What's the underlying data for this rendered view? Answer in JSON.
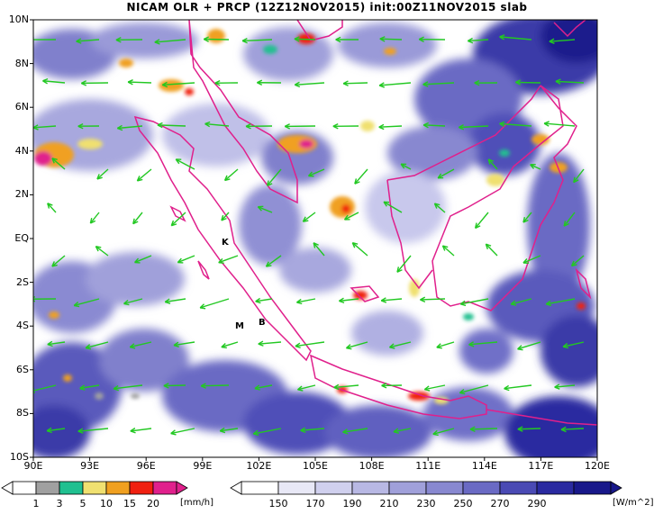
{
  "title": "NICAM OLR + PRCP (12Z12NOV2015) init:00Z11NOV2015 slab",
  "map": {
    "lat_labels": [
      "10N",
      "8N",
      "6N",
      "4N",
      "2N",
      "EQ",
      "2S",
      "4S",
      "6S",
      "8S",
      "10S"
    ],
    "lon_labels": [
      "90E",
      "93E",
      "96E",
      "99E",
      "102E",
      "105E",
      "108E",
      "111E",
      "114E",
      "117E",
      "120E"
    ],
    "station_labels": [
      "K",
      "M",
      "B"
    ],
    "coast_color": "#e0208c",
    "wind_color": "#22c822"
  },
  "colorbars": {
    "precip": {
      "labels": [
        "1",
        "3",
        "5",
        "10",
        "15",
        "20"
      ],
      "unit": "[mm/h]",
      "colors": [
        "#ffffff",
        "#a0a0a0",
        "#20c090",
        "#f0e070",
        "#f0a020",
        "#f02010",
        "#e0208c"
      ]
    },
    "olr": {
      "labels": [
        "150",
        "170",
        "190",
        "210",
        "230",
        "250",
        "270",
        "290"
      ],
      "unit": "[W/m^2]",
      "colors": [
        "#ffffff",
        "#e8e8f6",
        "#d0d0ee",
        "#b8b8e4",
        "#a0a0da",
        "#8888d0",
        "#6a6ac4",
        "#4a4ab4",
        "#2a2aa0",
        "#18188a"
      ]
    }
  }
}
